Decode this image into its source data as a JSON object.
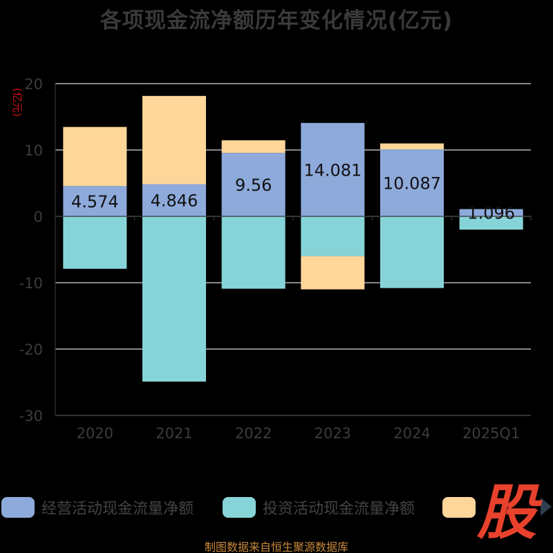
{
  "chart_data": {
    "type": "bar",
    "stacked": true,
    "title": "各项现金流净额历年变化情况(亿元)",
    "ylabel": "(亿元)",
    "ylim": [
      -30,
      20
    ],
    "yticks": [
      20,
      10,
      0,
      -10,
      -20,
      -30
    ],
    "categories": [
      "2020",
      "2021",
      "2022",
      "2023",
      "2024",
      "2025Q1"
    ],
    "series": [
      {
        "name": "经营活动现金流量净额",
        "color": "#8eaadb",
        "values": [
          4.574,
          4.846,
          9.56,
          14.081,
          10.087,
          1.096
        ],
        "labels": [
          "4.574",
          "4.846",
          "9.56",
          "14.081",
          "10.087",
          "1.096"
        ]
      },
      {
        "name": "投资活动现金流量净额",
        "color": "#87d4d8",
        "values": [
          -7.9,
          -24.9,
          -10.9,
          -6.0,
          -10.8,
          -2.0
        ]
      },
      {
        "name": "",
        "color": "#ffd699",
        "values": [
          8.9,
          13.3,
          1.9,
          -5.0,
          0.9,
          0.0
        ]
      }
    ],
    "legend_position": "bottom",
    "grid": true
  },
  "source": "制图数据来自恒生聚源数据库",
  "watermark": "股"
}
